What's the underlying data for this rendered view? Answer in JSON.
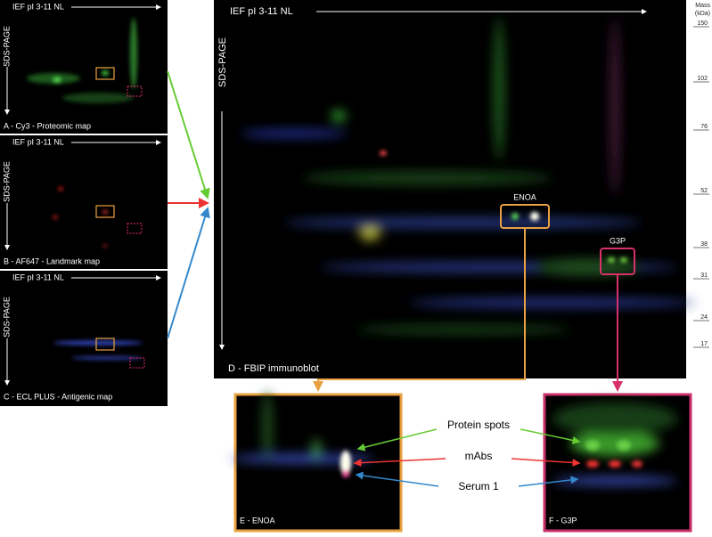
{
  "panels": [
    {
      "ief": "IEF pI 3-11 NL",
      "sds": "SDS-PAGE",
      "caption": "A - Cy3 - Proteomic map"
    },
    {
      "ief": "IEF pI 3-11 NL",
      "sds": "SDS-PAGE",
      "caption": "B - AF647 - Landmark map"
    },
    {
      "ief": "IEF pI 3-11 NL",
      "sds": "SDS-PAGE",
      "caption": "C - ECL PLUS - Antigenic map"
    }
  ],
  "main": {
    "ief": "IEF pI 3-11 NL",
    "sds": "SDS-PAGE",
    "caption": "D - FBIP immunoblot",
    "spots": [
      "ENOA",
      "G3P"
    ],
    "mass_label": [
      "Mass",
      "(kDa)"
    ],
    "mass_markers": [
      "150",
      "102",
      "76",
      "52",
      "38",
      "31",
      "24",
      "17"
    ]
  },
  "zooms": [
    "E - ENOA",
    "F - G3P"
  ],
  "legend": [
    "Protein spots",
    "mAbs",
    "Serum 1"
  ]
}
